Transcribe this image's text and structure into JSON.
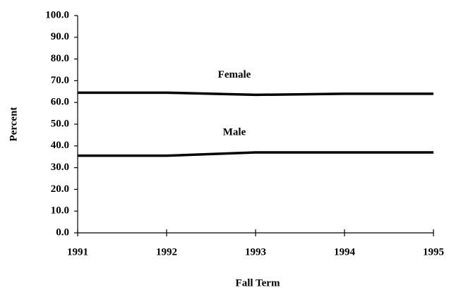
{
  "chart_data": {
    "type": "line",
    "x": [
      1991,
      1992,
      1993,
      1994,
      1995
    ],
    "series": [
      {
        "name": "Female",
        "color": "#000000",
        "values": [
          64.5,
          64.5,
          63.5,
          64,
          64
        ]
      },
      {
        "name": "Male",
        "color": "#000000",
        "values": [
          35.5,
          35.5,
          37,
          37,
          37
        ]
      }
    ],
    "xlabel": "Fall Term",
    "ylabel": "Percent",
    "xlim": [
      1991,
      1995
    ],
    "xticks": [
      1991,
      1992,
      1993,
      1994,
      1995
    ],
    "ylim": [
      0,
      100
    ],
    "yticks": [
      {
        "value": 0,
        "label": "0.0"
      },
      {
        "value": 10,
        "label": "10.0"
      },
      {
        "value": 20,
        "label": "20.0"
      },
      {
        "value": 30,
        "label": "30.0"
      },
      {
        "value": 40,
        "label": "40.0"
      },
      {
        "value": 50,
        "label": "50.0"
      },
      {
        "value": 60,
        "label": "60.0"
      },
      {
        "value": 70,
        "label": "70.0"
      },
      {
        "value": 80,
        "label": "80.0"
      },
      {
        "value": 90,
        "label": "90.0"
      },
      {
        "value": 100,
        "label": "100.0"
      }
    ],
    "grid": false
  }
}
